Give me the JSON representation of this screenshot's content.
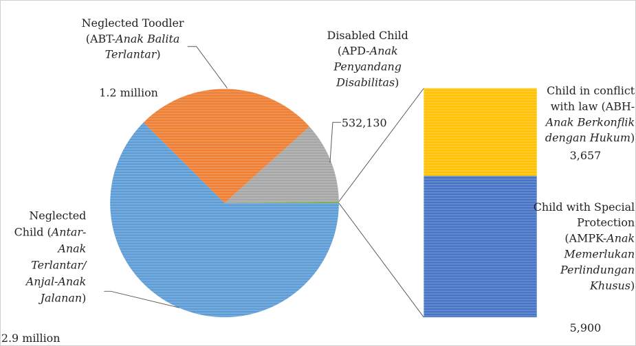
{
  "chart_data": [
    {
      "type": "pie",
      "slices": [
        {
          "label": "Neglected Child",
          "value": 2900000,
          "value_text": "2.9 million",
          "color": "#5b9bd5",
          "label_lines": [
            {
              "t": "Neglected",
              "it": ""
            },
            {
              "t": "Child (",
              "it": "Antar-"
            },
            {
              "t": "",
              "it": "Anak"
            },
            {
              "t": "",
              "it": "Terlantar/"
            },
            {
              "t": "",
              "it": "Anjal-Anak"
            },
            {
              "t": "",
              "it": "Jalanan",
              "tail": ")"
            }
          ]
        },
        {
          "label": "Neglected Toodler",
          "value": 1200000,
          "value_text": "1.2 million",
          "color": "#ed7d31",
          "label_lines": [
            {
              "t": "Neglected Toodler",
              "it": ""
            },
            {
              "t": "(ABT-",
              "it": "Anak Balita"
            },
            {
              "t": "",
              "it": "Terlantar",
              "tail": ")"
            }
          ]
        },
        {
          "label": "Disabled Child",
          "value": 532130,
          "value_text": "532,130",
          "color": "#a5a5a5",
          "label_lines": [
            {
              "t": "Disabled Child",
              "it": ""
            },
            {
              "t": "(APD-",
              "it": "Anak"
            },
            {
              "t": "",
              "it": "Penyandang"
            },
            {
              "t": "",
              "it": "Disabilitas",
              "tail": ")"
            }
          ]
        },
        {
          "label": "Child with Special Protection",
          "value": 9557,
          "value_text": "",
          "color": "#70ad47",
          "label_lines": []
        }
      ]
    },
    {
      "type": "bar",
      "stacked": true,
      "segments": [
        {
          "label": "Child with Special Protection",
          "value": 5900,
          "value_text": "5,900",
          "color": "#4472c4",
          "label_lines": [
            {
              "t": "Child with Special",
              "it": ""
            },
            {
              "t": "Protection",
              "it": ""
            },
            {
              "t": "(AMPK-",
              "it": "Anak"
            },
            {
              "t": "",
              "it": "Memerlukan"
            },
            {
              "t": "",
              "it": "Perlindungan"
            },
            {
              "t": "",
              "it": "Khusus",
              "tail": ")"
            }
          ]
        },
        {
          "label": "Child in conflict with law",
          "value": 3657,
          "value_text": "3,657",
          "color": "#ffc000",
          "label_lines": [
            {
              "t": "Child in conflict",
              "it": ""
            },
            {
              "t": "with law (ABH-",
              "it": ""
            },
            {
              "t": "",
              "it": "Anak Berkonflik"
            },
            {
              "t": "",
              "it": "dengan Hukum",
              "tail": ")"
            }
          ]
        }
      ]
    }
  ]
}
